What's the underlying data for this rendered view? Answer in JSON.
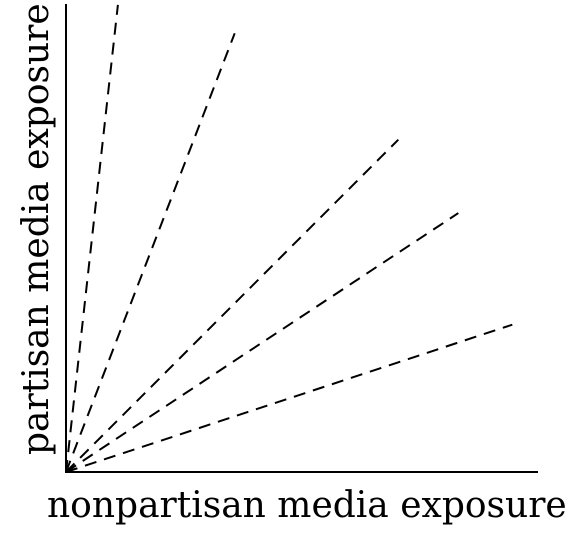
{
  "axes": {
    "x_label": "nonpartisan media exposure",
    "y_label": "partisan media exposure"
  },
  "rays": [
    {
      "dx": 1.0,
      "dy": 9.0
    },
    {
      "dx": 1.0,
      "dy": 2.6
    },
    {
      "dx": 1.0,
      "dy": 1.0
    },
    {
      "dx": 1.0,
      "dy": 0.66
    },
    {
      "dx": 1.0,
      "dy": 0.33
    }
  ],
  "colors": {
    "ink": "#000000",
    "background": "#ffffff"
  }
}
